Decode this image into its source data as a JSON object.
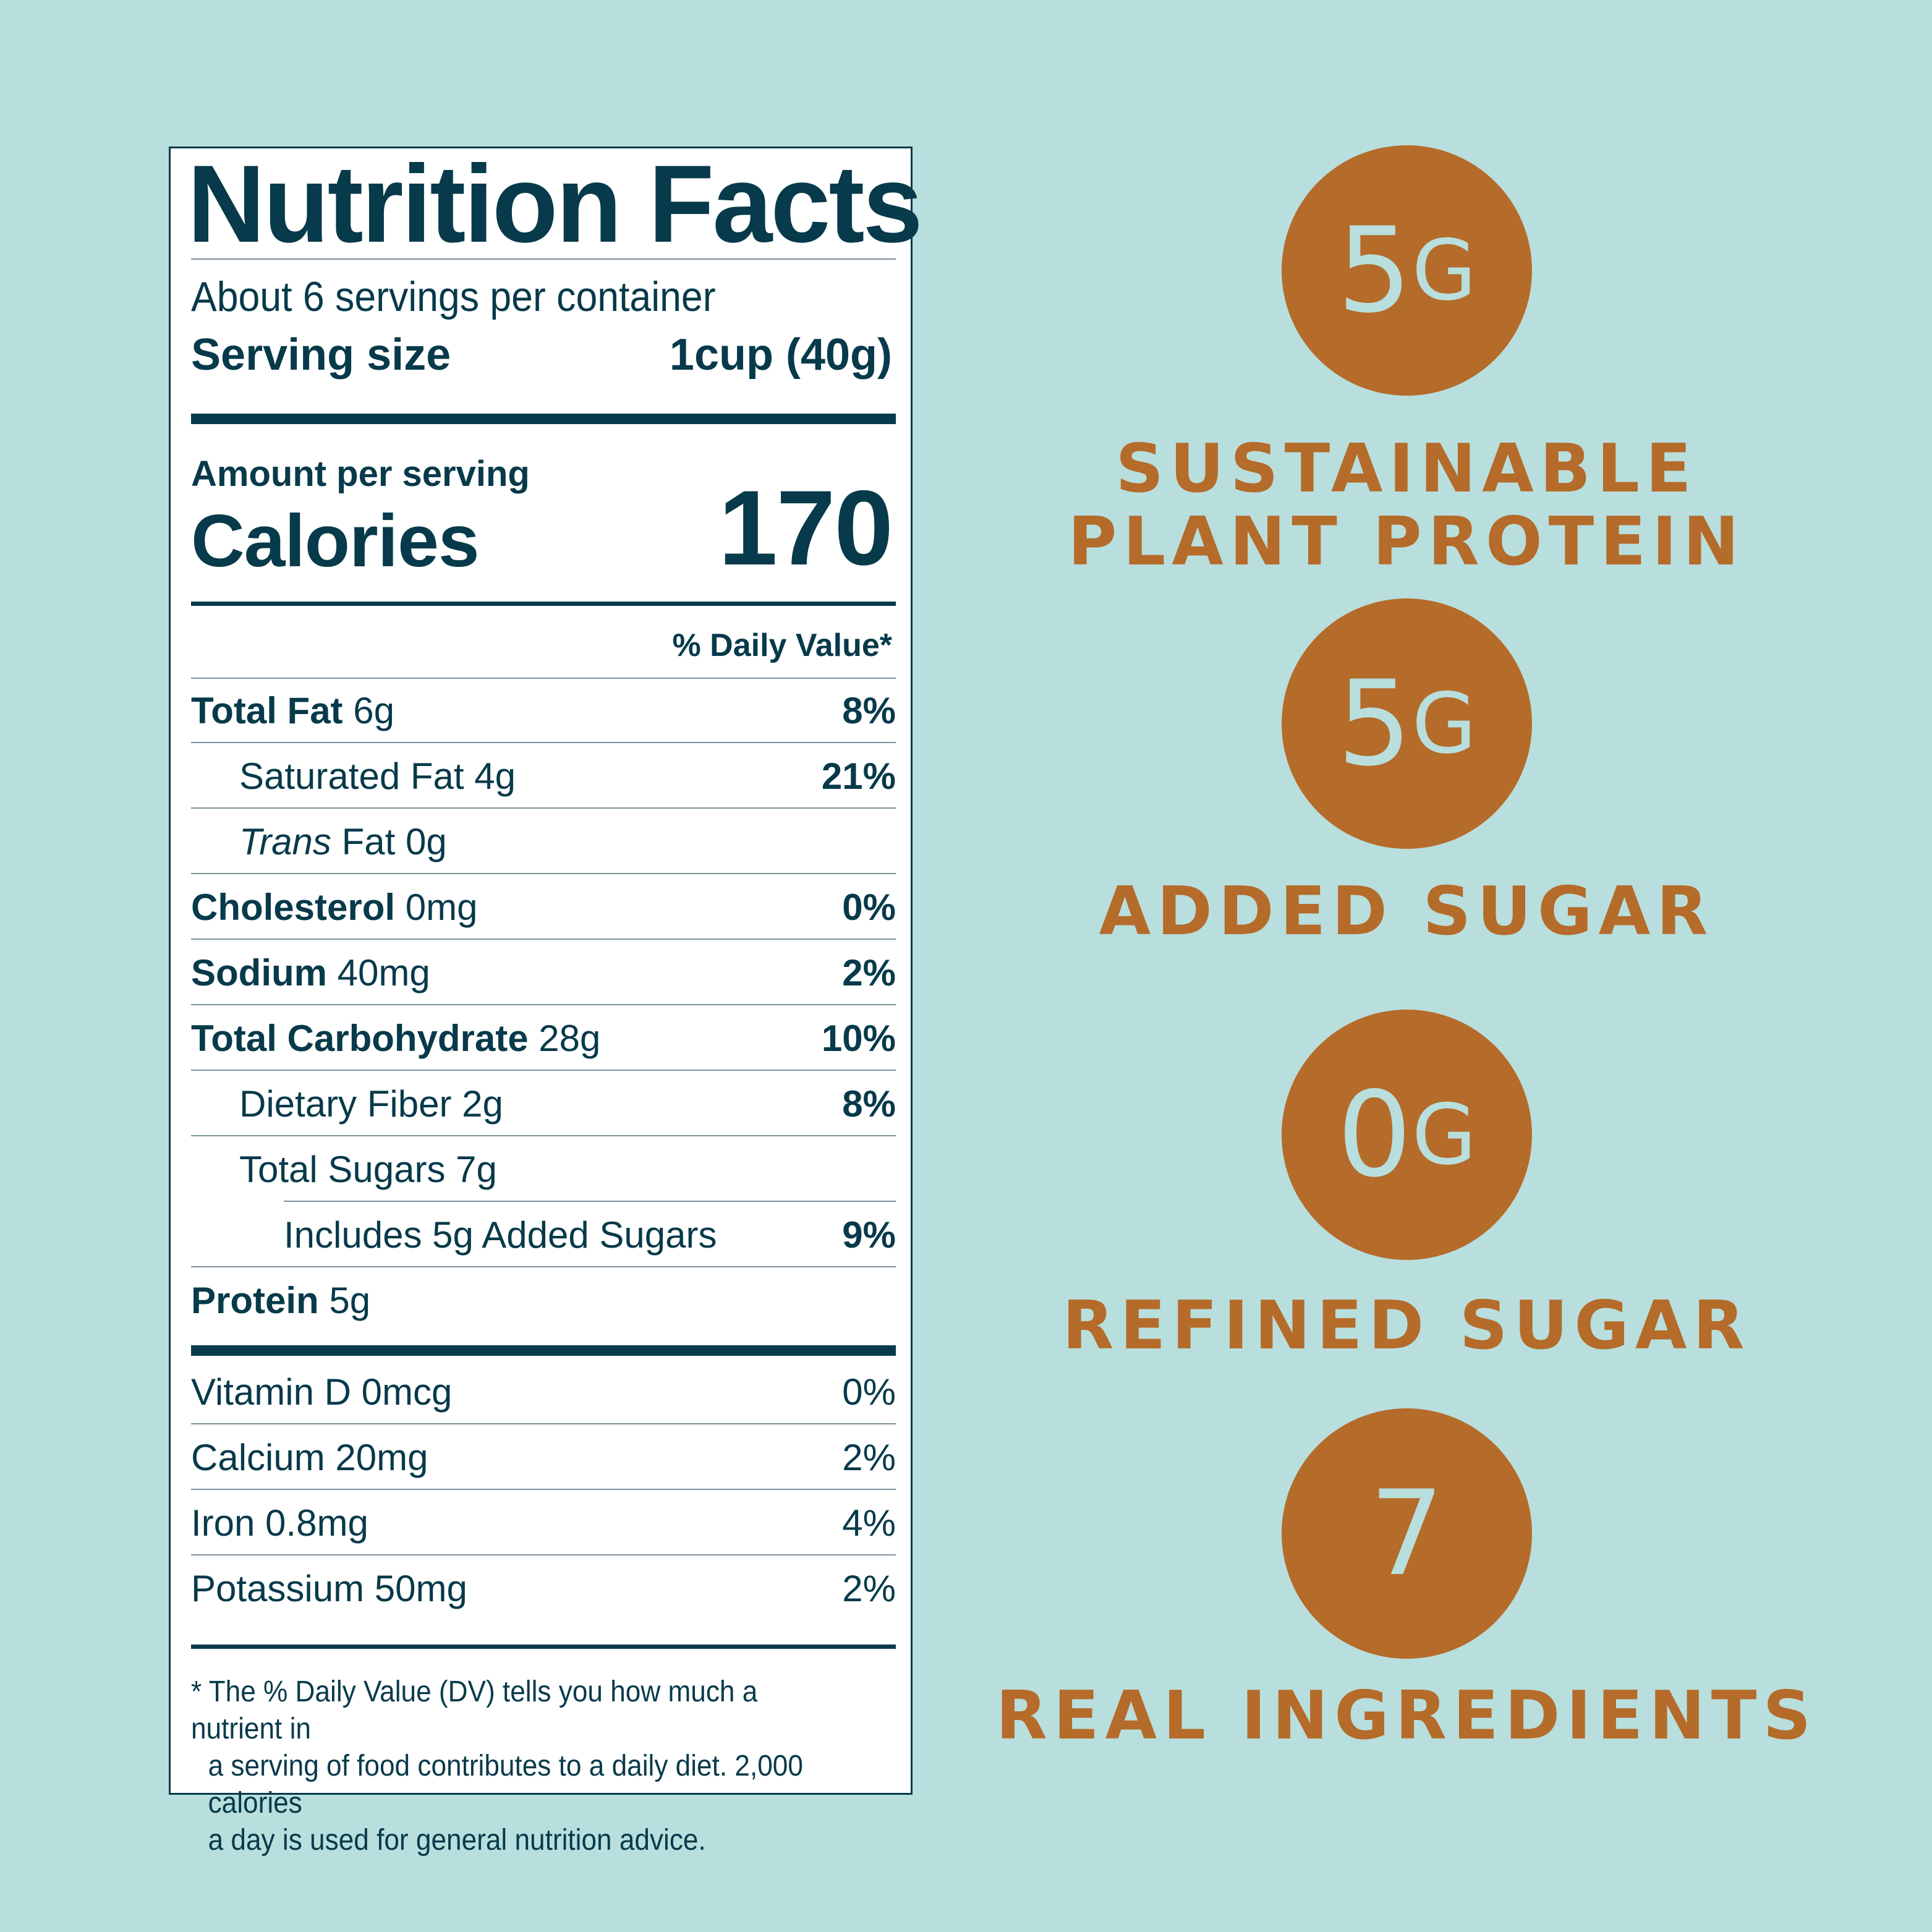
{
  "label": {
    "title": "Nutrition Facts",
    "servings": "About 6 servings per container",
    "serving_size_label": "Serving size",
    "serving_size_value": "1cup (40g)",
    "amount_per_serving": "Amount per serving",
    "calories_label": "Calories",
    "calories_value": "170",
    "daily_value_header": "% Daily Value*",
    "nutrients": [
      {
        "bold": "Total Fat",
        "amount": " 6g",
        "pct": "8%"
      },
      {
        "bold": "",
        "amount": "Saturated Fat 4g",
        "pct": "21%"
      },
      {
        "italic": "Trans",
        "amount": " Fat 0g",
        "pct": ""
      },
      {
        "bold": "Cholesterol",
        "amount": " 0mg",
        "pct": "0%"
      },
      {
        "bold": "Sodium",
        "amount": " 40mg",
        "pct": "2%"
      },
      {
        "bold": "Total Carbohydrate",
        "amount": " 28g",
        "pct": "10%"
      },
      {
        "bold": "",
        "amount": "Dietary Fiber 2g",
        "pct": "8%"
      },
      {
        "bold": "",
        "amount": "Total Sugars 7g",
        "pct": ""
      },
      {
        "bold": "",
        "amount": "Includes 5g Added Sugars",
        "pct": "9%"
      },
      {
        "bold": "Protein",
        "amount": " 5g",
        "pct": ""
      }
    ],
    "vitamins": [
      {
        "name": "Vitamin D 0mcg",
        "pct": "0%"
      },
      {
        "name": "Calcium 20mg",
        "pct": "2%"
      },
      {
        "name": "Iron 0.8mg",
        "pct": "4%"
      },
      {
        "name": "Potassium 50mg",
        "pct": "2%"
      }
    ],
    "footnote": [
      "* The % Daily Value (DV) tells you how much a nutrient in",
      "a serving of food contributes to a daily diet. 2,000 calories",
      "a day is used for general nutrition advice."
    ]
  },
  "highlights": [
    {
      "number": "5",
      "unit": "G",
      "caption_1": "SUSTAINABLE",
      "caption_2": "PLANT PROTEIN"
    },
    {
      "number": "5",
      "unit": "G",
      "caption_1": "ADDED SUGAR",
      "caption_2": ""
    },
    {
      "number": "0",
      "unit": "G",
      "caption_1": "REFINED SUGAR",
      "caption_2": ""
    },
    {
      "number": "7",
      "unit": "",
      "caption_1": "REAL INGREDIENTS",
      "caption_2": ""
    }
  ],
  "colors": {
    "background": "#b8dfdd",
    "ink": "#073a4a",
    "accent": "#b56b2a"
  }
}
